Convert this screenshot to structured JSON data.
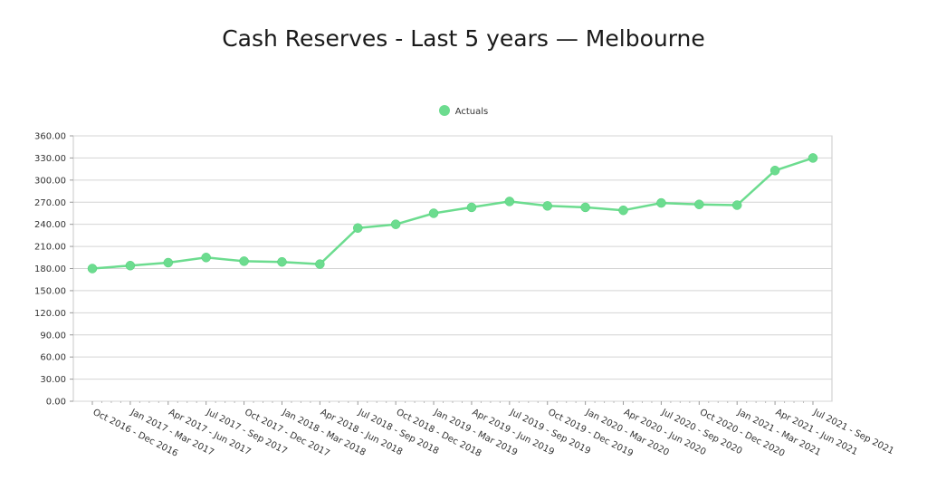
{
  "chart_data": {
    "type": "line",
    "title": "Cash Reserves - Last 5 years — Melbourne",
    "categories": [
      "Oct 2016 - Dec 2016",
      "Jan 2017 - Mar 2017",
      "Apr 2017 - Jun 2017",
      "Jul 2017 - Sep 2017",
      "Oct 2017 - Dec 2017",
      "Jan 2018 - Mar 2018",
      "Apr 2018 - Jun 2018",
      "Jul 2018 - Sep 2018",
      "Oct 2018 - Dec 2018",
      "Jan 2019 - Mar 2019",
      "Apr 2019 - Jun 2019",
      "Jul 2019 - Sep 2019",
      "Oct 2019 - Dec 2019",
      "Jan 2020 - Mar 2020",
      "Apr 2020 - Jun 2020",
      "Jul 2020 - Sep 2020",
      "Oct 2020 - Dec 2020",
      "Jan 2021 - Mar 2021",
      "Apr 2021 - Jun 2021",
      "Jul 2021 - Sep 2021"
    ],
    "series": [
      {
        "name": "Actuals",
        "color": "#6cdc8f",
        "values": [
          180,
          184,
          188,
          195,
          190,
          189,
          186,
          235,
          240,
          255,
          263,
          271,
          265,
          263,
          259,
          269,
          267,
          266,
          313,
          330
        ]
      }
    ],
    "xlabel": "",
    "ylabel": "",
    "ylim": [
      0,
      360
    ],
    "yticks": [
      "0.00",
      "30.00",
      "60.00",
      "90.00",
      "120.00",
      "150.00",
      "180.00",
      "210.00",
      "240.00",
      "270.00",
      "300.00",
      "330.00",
      "360.00"
    ],
    "grid": true,
    "legend_position": "top-center"
  }
}
